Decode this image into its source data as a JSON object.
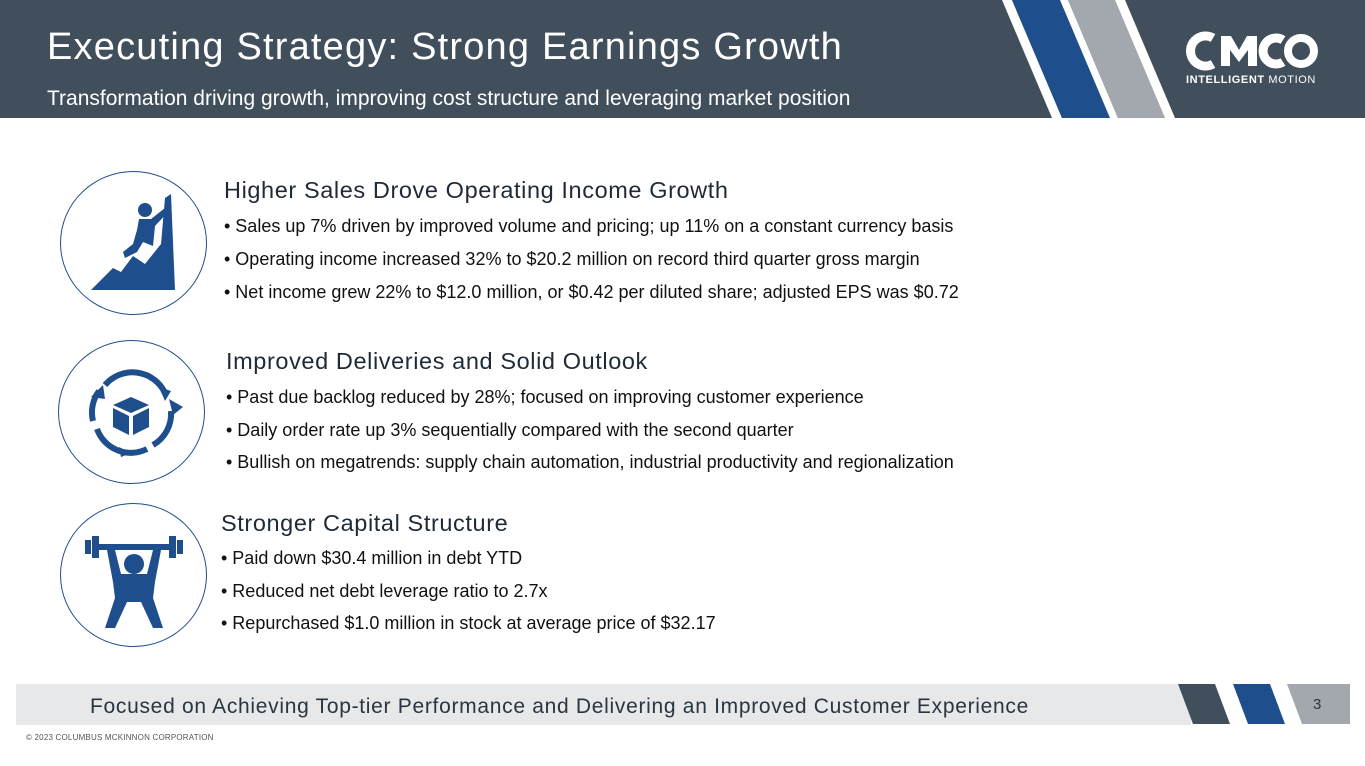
{
  "header": {
    "title": "Executing Strategy: Strong Earnings Growth",
    "subtitle": "Transformation driving growth, improving cost structure and leveraging market position"
  },
  "logo": {
    "name": "CMCO",
    "tagline_bold": "INTELLIGENT",
    "tagline_light": "MOTION"
  },
  "sections": [
    {
      "icon": "climber-icon",
      "title": "Higher Sales Drove Operating Income Growth",
      "bullets": [
        "• Sales up 7% driven by improved volume and pricing; up 11% on a constant currency basis",
        "• Operating income increased 32% to $20.2 million on record third quarter gross margin",
        "• Net income grew 22% to $12.0 million, or $0.42 per diluted share; adjusted EPS was $0.72"
      ]
    },
    {
      "icon": "box-cycle-icon",
      "title": "Improved Deliveries and Solid Outlook",
      "bullets": [
        "• Past due backlog reduced by 28%; focused on improving customer experience",
        "• Daily order rate up 3% sequentially compared with the second quarter",
        "• Bullish on megatrends: supply chain automation, industrial productivity and regionalization"
      ]
    },
    {
      "icon": "weightlifter-icon",
      "title": "Stronger Capital Structure",
      "bullets": [
        "• Paid down $30.4 million in debt YTD",
        "• Reduced net debt leverage ratio to 2.7x",
        "• Repurchased $1.0 million in stock at average price of $32.17"
      ]
    }
  ],
  "footer": {
    "tagline": "Focused on Achieving Top-tier Performance and Delivering an Improved Customer Experience",
    "page_number": "3",
    "copyright": "© 2023 COLUMBUS MCKINNON CORPORATION"
  },
  "colors": {
    "header_bg": "#404f5b",
    "accent_blue": "#1f4e8c",
    "stripe_gray": "#a2a8ad",
    "footer_bg": "#e6e8ea"
  }
}
